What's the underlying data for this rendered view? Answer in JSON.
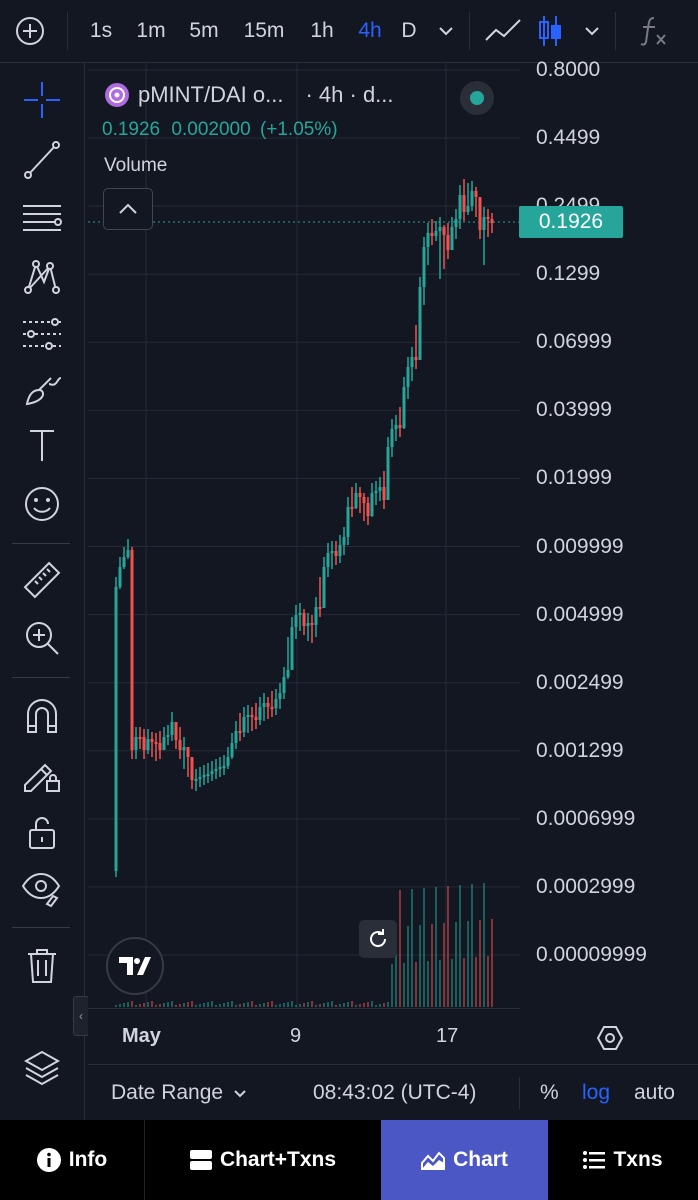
{
  "toolbar": {
    "intervals": [
      "1s",
      "1m",
      "5m",
      "15m",
      "1h",
      "4h",
      "D"
    ],
    "active_interval": "4h",
    "accent_color": "#2962ff",
    "icons": [
      "plus-circle-icon",
      "chevron-down-icon",
      "line-chart-icon",
      "candlestick-icon",
      "indicators-fx-icon"
    ]
  },
  "sidebar": {
    "tools": [
      "crosshair-icon",
      "trend-line-icon",
      "horizontal-lines-icon",
      "pattern-icon",
      "prediction-icon",
      "brush-icon",
      "text-icon",
      "emoji-icon",
      "ruler-icon",
      "zoom-in-icon",
      "magnet-icon",
      "lock-drawing-icon",
      "unlock-icon",
      "eye-icon",
      "trash-icon",
      "layers-icon"
    ],
    "collapse_glyph": "‹"
  },
  "legend": {
    "title": "pMINT/DAI o...",
    "interval": "· 4h · d...",
    "price": "0.1926",
    "change": "0.002000",
    "change_pct": "(+1.05%)",
    "volume_label": "Volume"
  },
  "price_axis": {
    "labels": [
      "0.8000",
      "0.4499",
      "0.2499",
      "0.1299",
      "0.06999",
      "0.03999",
      "0.01999",
      "0.009999",
      "0.004999",
      "0.002499",
      "0.001299",
      "0.0006999",
      "0.0002999",
      "0.00009999"
    ],
    "last_price": "0.1926",
    "scale": "log"
  },
  "time_axis": {
    "labels": [
      "May",
      "9",
      "17"
    ]
  },
  "bottom_strip": {
    "date_range": "Date Range",
    "time": "08:43:02 (UTC-4)",
    "percent": "%",
    "log": "log",
    "auto": "auto"
  },
  "bottom_nav": {
    "info": "Info",
    "chart_txns": "Chart+Txns",
    "chart": "Chart",
    "txns": "Txns",
    "active": "Chart",
    "active_color": "#4b57c4"
  },
  "chart_data": {
    "type": "candlestick",
    "up_color": "#26a69a",
    "down_color": "#ef5350",
    "y_scale": "log",
    "ylim": [
      7e-05,
      0.8
    ],
    "x_ticks": [
      "May",
      "9",
      "17"
    ]
  }
}
